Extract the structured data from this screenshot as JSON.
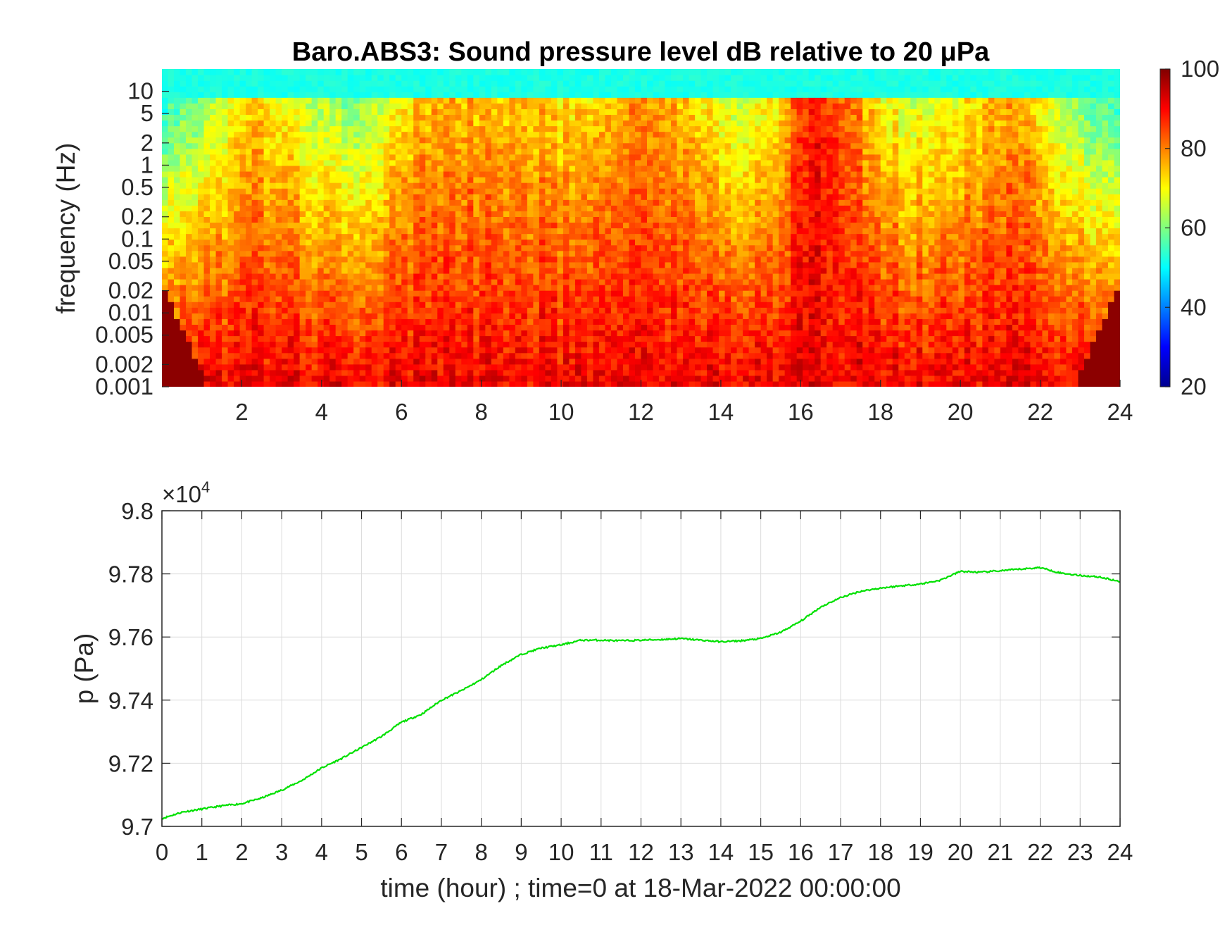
{
  "chart_data": [
    {
      "type": "heatmap",
      "title": "Baro.ABS3: Sound pressure level dB relative to 20 μPa",
      "ylabel": "frequency (Hz)",
      "xlabel": "",
      "y_scale": "log",
      "x_range": [
        0,
        24
      ],
      "y_range": [
        0.001,
        20
      ],
      "x_ticks": [
        "2",
        "4",
        "6",
        "8",
        "10",
        "12",
        "14",
        "16",
        "18",
        "20",
        "22",
        "24"
      ],
      "y_ticks": [
        "0.001",
        "0.002",
        "0.005",
        "0.01",
        "0.02",
        "0.05",
        "0.1",
        "0.2",
        "0.5",
        "1",
        "2",
        "5",
        "10"
      ],
      "colorbar": {
        "range": [
          20,
          100
        ],
        "ticks": [
          "20",
          "40",
          "60",
          "80",
          "100"
        ],
        "colormap": "jet"
      },
      "grid": false
    },
    {
      "type": "line",
      "title": "",
      "xlabel": "time (hour) ; time=0 at 18-Mar-2022 00:00:00",
      "ylabel": "p (Pa)",
      "y_exponent_label": "×10",
      "y_exponent_value": "4",
      "xlim": [
        0,
        24
      ],
      "ylim": [
        97000,
        98000
      ],
      "x_ticks": [
        "0",
        "1",
        "2",
        "3",
        "4",
        "5",
        "6",
        "7",
        "8",
        "9",
        "10",
        "11",
        "12",
        "13",
        "14",
        "15",
        "16",
        "17",
        "18",
        "19",
        "20",
        "21",
        "22",
        "23",
        "24"
      ],
      "y_ticks": [
        "9.7",
        "9.72",
        "9.74",
        "9.76",
        "9.78",
        "9.8"
      ],
      "grid": true,
      "series": [
        {
          "color": "#00e000",
          "x": [
            0,
            0.5,
            1,
            1.5,
            2,
            2.5,
            3,
            3.5,
            4,
            4.5,
            5,
            5.5,
            6,
            6.5,
            7,
            7.5,
            8,
            8.5,
            9,
            9.5,
            10,
            10.5,
            11,
            11.5,
            12,
            12.5,
            13,
            13.5,
            14,
            14.5,
            15,
            15.5,
            16,
            16.5,
            17,
            17.5,
            18,
            18.5,
            19,
            19.5,
            20,
            20.5,
            21,
            21.5,
            22,
            22.5,
            23,
            23.5,
            24
          ],
          "y": [
            97025,
            97045,
            97055,
            97065,
            97072,
            97090,
            97115,
            97145,
            97185,
            97215,
            97250,
            97285,
            97330,
            97355,
            97400,
            97430,
            97465,
            97510,
            97545,
            97565,
            97575,
            97590,
            97590,
            97588,
            97590,
            97592,
            97595,
            97590,
            97585,
            97588,
            97595,
            97615,
            97650,
            97695,
            97725,
            97745,
            97755,
            97762,
            97768,
            97780,
            97808,
            97805,
            97810,
            97815,
            97820,
            97803,
            97795,
            97790,
            97775
          ]
        }
      ]
    }
  ]
}
